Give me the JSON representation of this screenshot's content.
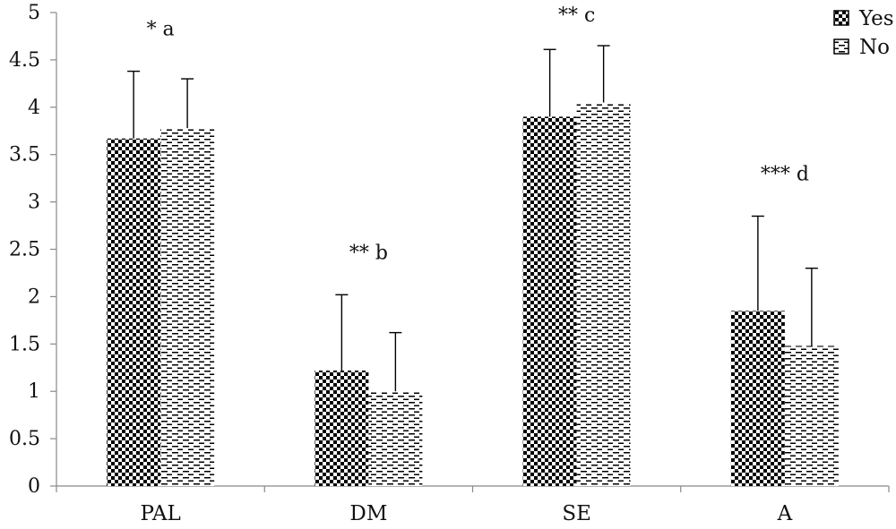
{
  "chart_data": {
    "type": "bar",
    "categories": [
      "PAL",
      "DM",
      "SE",
      "A"
    ],
    "series": [
      {
        "name": "Yes",
        "values": [
          3.67,
          1.22,
          3.9,
          1.85
        ],
        "errors": [
          0.71,
          0.8,
          0.71,
          1.0
        ],
        "pattern": "checker"
      },
      {
        "name": "No",
        "values": [
          3.78,
          1.0,
          4.05,
          1.48
        ],
        "errors": [
          0.52,
          0.62,
          0.6,
          0.82
        ],
        "pattern": "dash"
      }
    ],
    "annotations": [
      "* a",
      "** b",
      "** c",
      "*** d"
    ],
    "ylim": [
      0,
      5
    ],
    "yticks": [
      "0",
      "0.5",
      "1",
      "1.5",
      "2",
      "2.5",
      "3",
      "3.5",
      "4",
      "4.5",
      "5"
    ],
    "title": "",
    "xlabel": "",
    "ylabel": "",
    "grid": false,
    "legend_position": "top-right"
  }
}
